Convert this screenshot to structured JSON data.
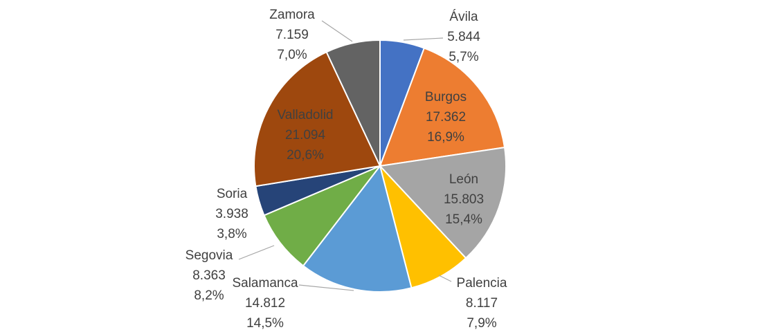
{
  "chart_data": {
    "type": "pie",
    "title": "",
    "slices": [
      {
        "name": "Ávila",
        "value": "5.844",
        "percent": "5,7%",
        "color": "#4472c4"
      },
      {
        "name": "Burgos",
        "value": "17.362",
        "percent": "16,9%",
        "color": "#ed7d31"
      },
      {
        "name": "León",
        "value": "15.803",
        "percent": "15,4%",
        "color": "#a5a5a5"
      },
      {
        "name": "Palencia",
        "value": "8.117",
        "percent": "7,9%",
        "color": "#ffc000"
      },
      {
        "name": "Salamanca",
        "value": "14.812",
        "percent": "14,5%",
        "color": "#5b9bd5"
      },
      {
        "name": "Segovia",
        "value": "8.363",
        "percent": "8,2%",
        "color": "#70ad47"
      },
      {
        "name": "Soria",
        "value": "3.938",
        "percent": "3,8%",
        "color": "#264478"
      },
      {
        "name": "Valladolid",
        "value": "21.094",
        "percent": "20,6%",
        "color": "#9e480e"
      },
      {
        "name": "Zamora",
        "value": "7.159",
        "percent": "7,0%",
        "color": "#636363"
      }
    ]
  }
}
